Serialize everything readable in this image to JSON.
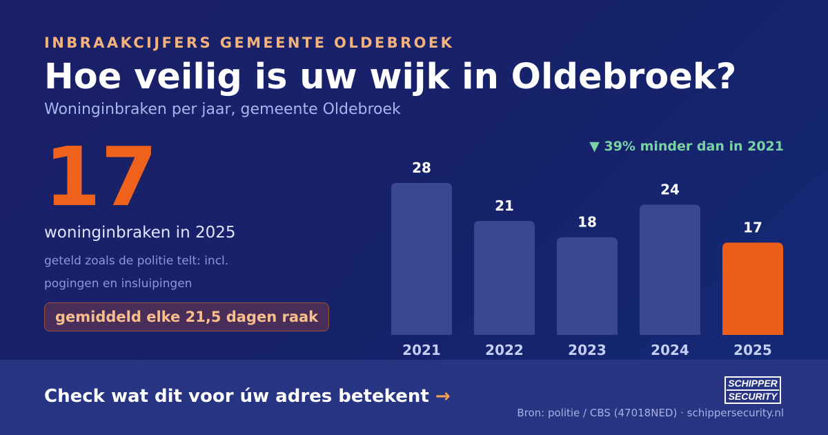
{
  "eyebrow": "INBRAAKCIJFERS GEMEENTE OLDEBROEK",
  "headline": "Hoe veilig is uw wijk in Oldebroek?",
  "subtitle": "Woninginbraken per jaar, gemeente Oldebroek",
  "kpi": {
    "value": "17",
    "label": "woninginbraken in 2025",
    "note": "geteld zoals de politie telt: incl. pogingen en insluipingen",
    "pill": "gemiddeld elke 21,5 dagen raak"
  },
  "chart_data": {
    "type": "bar",
    "categories": [
      "2021",
      "2022",
      "2023",
      "2024",
      "2025"
    ],
    "values": [
      28,
      21,
      18,
      24,
      17
    ],
    "title": "",
    "xlabel": "",
    "ylabel": "",
    "ylim": [
      0,
      28
    ],
    "grid": false,
    "annotation": "▼ 39% minder dan in 2021",
    "colors": {
      "bar": "#3a4891",
      "highlight": "#ed5f19",
      "annotation": "#7ad3a3",
      "value_label": "#ffffff",
      "category_label": "#c5cef5"
    },
    "highlight_category": "2025"
  },
  "footer": {
    "cta": "Check wat dit voor úw adres betekent",
    "cta_arrow": "→",
    "source": "Bron: politie / CBS (47018NED) · schippersecurity.nl",
    "logo": {
      "line1": "SCHIPPER",
      "line2": "SECURITY"
    }
  }
}
